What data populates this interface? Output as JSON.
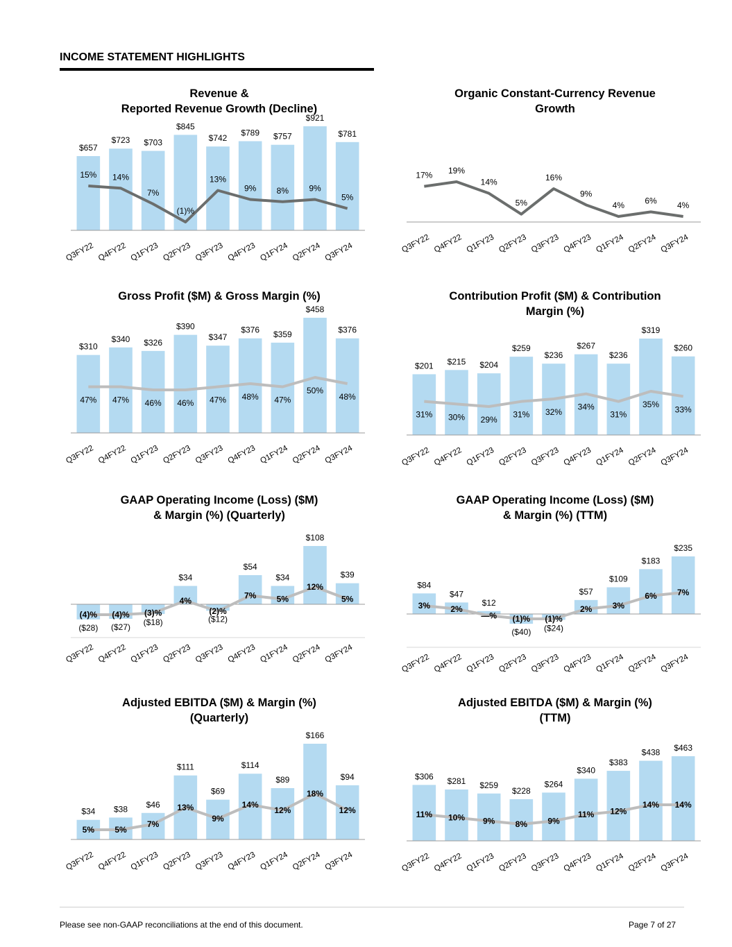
{
  "page": {
    "header": "INCOME STATEMENT HIGHLIGHTS",
    "footer_note": "Please see non-GAAP reconciliations at the end of this document.",
    "page_number": "Page 7 of 27"
  },
  "colors": {
    "bar": "#b4daf1",
    "line_dark": "#6b6e6d",
    "line_light": "#bdbdbd",
    "axis": "#9a9a9a"
  },
  "chart_data": [
    {
      "type": "bar+line",
      "title": "Revenue &\nReported Revenue Growth (Decline)",
      "categories": [
        "Q3FY22",
        "Q4FY22",
        "Q1FY23",
        "Q2FY23",
        "Q3FY23",
        "Q4FY23",
        "Q1FY24",
        "Q2FY24",
        "Q3FY24"
      ],
      "series": [
        {
          "name": "Revenue ($M)",
          "kind": "bar",
          "values": [
            657,
            723,
            703,
            845,
            742,
            789,
            757,
            921,
            781
          ],
          "labels": [
            "$657",
            "$723",
            "$703",
            "$845",
            "$742",
            "$789",
            "$757",
            "$921",
            "$781"
          ]
        },
        {
          "name": "Reported Revenue Growth (%)",
          "kind": "line",
          "values": [
            15,
            14,
            7,
            -1,
            13,
            9,
            8,
            9,
            5
          ],
          "labels": [
            "15%",
            "14%",
            "7%",
            "(1)%",
            "13%",
            "9%",
            "8%",
            "9%",
            "5%"
          ]
        }
      ]
    },
    {
      "type": "line",
      "title": "Organic Constant-Currency Revenue\nGrowth",
      "categories": [
        "Q3FY22",
        "Q4FY22",
        "Q1FY23",
        "Q2FY23",
        "Q3FY23",
        "Q4FY23",
        "Q1FY24",
        "Q2FY24",
        "Q3FY24"
      ],
      "series": [
        {
          "name": "Organic Constant-Currency Revenue Growth (%)",
          "kind": "line",
          "values": [
            17,
            19,
            14,
            5,
            16,
            9,
            4,
            6,
            4
          ],
          "labels": [
            "17%",
            "19%",
            "14%",
            "5%",
            "16%",
            "9%",
            "4%",
            "6%",
            "4%"
          ]
        }
      ]
    },
    {
      "type": "bar+line",
      "title": "Gross Profit ($M) & Gross Margin (%)",
      "categories": [
        "Q3FY22",
        "Q4FY22",
        "Q1FY23",
        "Q2FY23",
        "Q3FY23",
        "Q4FY23",
        "Q1FY24",
        "Q2FY24",
        "Q3FY24"
      ],
      "series": [
        {
          "name": "Gross Profit ($M)",
          "kind": "bar",
          "values": [
            310,
            340,
            326,
            390,
            347,
            376,
            359,
            458,
            376
          ],
          "labels": [
            "$310",
            "$340",
            "$326",
            "$390",
            "$347",
            "$376",
            "$359",
            "$458",
            "$376"
          ]
        },
        {
          "name": "Gross Margin (%)",
          "kind": "line",
          "values": [
            47,
            47,
            46,
            46,
            47,
            48,
            47,
            50,
            48
          ],
          "labels": [
            "47%",
            "47%",
            "46%",
            "46%",
            "47%",
            "48%",
            "47%",
            "50%",
            "48%"
          ]
        }
      ]
    },
    {
      "type": "bar+line",
      "title": "Contribution Profit ($M) & Contribution\nMargin (%)",
      "categories": [
        "Q3FY22",
        "Q4FY22",
        "Q1FY23",
        "Q2FY23",
        "Q3FY23",
        "Q4FY23",
        "Q1FY24",
        "Q2FY24",
        "Q3FY24"
      ],
      "series": [
        {
          "name": "Contribution Profit ($M)",
          "kind": "bar",
          "values": [
            201,
            215,
            204,
            259,
            236,
            267,
            236,
            319,
            260
          ],
          "labels": [
            "$201",
            "$215",
            "$204",
            "$259",
            "$236",
            "$267",
            "$236",
            "$319",
            "$260"
          ]
        },
        {
          "name": "Contribution Margin (%)",
          "kind": "line",
          "values": [
            31,
            30,
            29,
            31,
            32,
            34,
            31,
            35,
            33
          ],
          "labels": [
            "31%",
            "30%",
            "29%",
            "31%",
            "32%",
            "34%",
            "31%",
            "35%",
            "33%"
          ]
        }
      ]
    },
    {
      "type": "bar+line",
      "title": "GAAP Operating Income (Loss) ($M)\n& Margin (%) (Quarterly)",
      "categories": [
        "Q3FY22",
        "Q4FY22",
        "Q1FY23",
        "Q2FY23",
        "Q3FY23",
        "Q4FY23",
        "Q1FY24",
        "Q2FY24",
        "Q3FY24"
      ],
      "series": [
        {
          "name": "GAAP Operating Income (Loss) ($M)",
          "kind": "bar",
          "values": [
            -28,
            -27,
            -18,
            34,
            -12,
            54,
            34,
            108,
            39
          ],
          "labels": [
            "($28)",
            "($27)",
            "($18)",
            "$34",
            "($12)",
            "$54",
            "$34",
            "$108",
            "$39"
          ]
        },
        {
          "name": "Margin (%)",
          "kind": "line",
          "values": [
            -4,
            -4,
            -3,
            4,
            -2,
            7,
            5,
            12,
            5
          ],
          "labels": [
            "(4)%",
            "(4)%",
            "(3)%",
            "4%",
            "(2)%",
            "7%",
            "5%",
            "12%",
            "5%"
          ]
        }
      ]
    },
    {
      "type": "bar+line",
      "title": "GAAP Operating Income (Loss) ($M)\n& Margin (%) (TTM)",
      "categories": [
        "Q3FY22",
        "Q4FY22",
        "Q1FY23",
        "Q2FY23",
        "Q3FY23",
        "Q4FY23",
        "Q1FY24",
        "Q2FY24",
        "Q3FY24"
      ],
      "series": [
        {
          "name": "GAAP Operating Income (Loss) ($M) TTM",
          "kind": "bar",
          "values": [
            84,
            47,
            12,
            -40,
            -24,
            57,
            109,
            183,
            235
          ],
          "labels": [
            "$84",
            "$47",
            "$12",
            "($40)",
            "($24)",
            "$57",
            "$109",
            "$183",
            "$235"
          ]
        },
        {
          "name": "Margin (%) TTM",
          "kind": "line",
          "values": [
            3,
            2,
            0,
            -1,
            -1,
            2,
            3,
            6,
            7
          ],
          "labels": [
            "3%",
            "2%",
            "—%",
            "(1)%",
            "(1)%",
            "2%",
            "3%",
            "6%",
            "7%"
          ]
        }
      ]
    },
    {
      "type": "bar+line",
      "title": "Adjusted EBITDA ($M) & Margin (%)\n(Quarterly)",
      "categories": [
        "Q3FY22",
        "Q4FY22",
        "Q1FY23",
        "Q2FY23",
        "Q3FY23",
        "Q4FY23",
        "Q1FY24",
        "Q2FY24",
        "Q3FY24"
      ],
      "series": [
        {
          "name": "Adjusted EBITDA ($M)",
          "kind": "bar",
          "values": [
            34,
            38,
            46,
            111,
            69,
            114,
            89,
            166,
            94
          ],
          "labels": [
            "$34",
            "$38",
            "$46",
            "$111",
            "$69",
            "$114",
            "$89",
            "$166",
            "$94"
          ]
        },
        {
          "name": "Margin (%)",
          "kind": "line",
          "values": [
            5,
            5,
            7,
            13,
            9,
            14,
            12,
            18,
            12
          ],
          "labels": [
            "5%",
            "5%",
            "7%",
            "13%",
            "9%",
            "14%",
            "12%",
            "18%",
            "12%"
          ]
        }
      ]
    },
    {
      "type": "bar+line",
      "title": "Adjusted EBITDA ($M) & Margin (%)\n(TTM)",
      "categories": [
        "Q3FY22",
        "Q4FY22",
        "Q1FY23",
        "Q2FY23",
        "Q3FY23",
        "Q4FY23",
        "Q1FY24",
        "Q2FY24",
        "Q3FY24"
      ],
      "series": [
        {
          "name": "Adjusted EBITDA ($M) TTM",
          "kind": "bar",
          "values": [
            306,
            281,
            259,
            228,
            264,
            340,
            383,
            438,
            463
          ],
          "labels": [
            "$306",
            "$281",
            "$259",
            "$228",
            "$264",
            "$340",
            "$383",
            "$438",
            "$463"
          ]
        },
        {
          "name": "Margin (%) TTM",
          "kind": "line",
          "values": [
            11,
            10,
            9,
            8,
            9,
            11,
            12,
            14,
            14
          ],
          "labels": [
            "11%",
            "10%",
            "9%",
            "8%",
            "9%",
            "11%",
            "12%",
            "14%",
            "14%"
          ]
        }
      ]
    }
  ]
}
